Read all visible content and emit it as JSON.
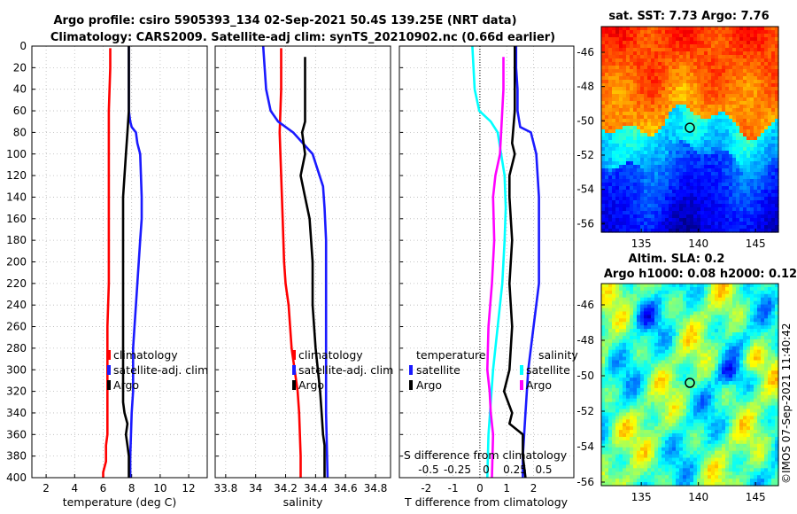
{
  "header": {
    "title_line1": "Argo profile: csiro 5905393_134 02-Sep-2021 50.4S 139.25E (NRT data)",
    "title_line2": "Climatology: CARS2009. Satellite-adj clim: synTS_20210902.nc (0.66d earlier)"
  },
  "colors": {
    "argo": "#000000",
    "climatology": "#ff0000",
    "satellite": "#1a1aff",
    "t_sat": "#00ffff",
    "t_clim": "#ff00ff"
  },
  "chart_data": [
    {
      "type": "line",
      "name": "temperature",
      "xlabel": "temperature (deg C)",
      "xlim": [
        1,
        13.3
      ],
      "ylim": [
        400,
        0
      ],
      "xticks": [
        "2",
        "4",
        "6",
        "8",
        "10",
        "12"
      ],
      "yticks": [
        "0",
        "20",
        "40",
        "60",
        "80",
        "100",
        "120",
        "140",
        "160",
        "180",
        "200",
        "220",
        "240",
        "260",
        "280",
        "300",
        "320",
        "340",
        "360",
        "380",
        "400"
      ],
      "series": [
        {
          "name": "climatology",
          "color_key": "climatology",
          "x": [
            6.5,
            6.5,
            6.4,
            6.4,
            6.4,
            6.4,
            6.4,
            6.4,
            6.3,
            6.3,
            6.3,
            6.3,
            6.3,
            6.3,
            6.2,
            6.2,
            6.2,
            6.1,
            6.0,
            6.0
          ],
          "y": [
            2,
            20,
            60,
            80,
            100,
            140,
            180,
            220,
            260,
            290,
            300,
            320,
            340,
            360,
            370,
            380,
            385,
            390,
            395,
            400
          ]
        },
        {
          "name": "satellite-adj. clim",
          "color_key": "satellite",
          "x": [
            7.8,
            7.8,
            7.8,
            7.9,
            8.0,
            8.3,
            8.4,
            8.6,
            8.7,
            8.7,
            8.6,
            8.5,
            8.4,
            8.3,
            8.2,
            8.1,
            8.1,
            8.1,
            8.0,
            7.9,
            7.9
          ],
          "y": [
            0,
            20,
            60,
            70,
            75,
            80,
            90,
            100,
            140,
            160,
            180,
            200,
            220,
            240,
            260,
            280,
            300,
            320,
            340,
            380,
            400
          ]
        },
        {
          "name": "Argo",
          "color_key": "argo",
          "x": [
            7.8,
            7.8,
            7.7,
            7.6,
            7.5,
            7.4,
            7.4,
            7.4,
            7.4,
            7.4,
            7.4,
            7.5,
            7.7,
            7.6,
            7.7,
            7.8,
            7.8
          ],
          "y": [
            0,
            60,
            80,
            100,
            120,
            140,
            180,
            220,
            260,
            300,
            330,
            340,
            350,
            360,
            370,
            380,
            400
          ]
        }
      ],
      "legend": [
        "climatology",
        "satellite-adj. clim",
        "Argo"
      ]
    },
    {
      "type": "line",
      "name": "salinity",
      "xlabel": "salinity",
      "xlim": [
        33.73,
        34.9
      ],
      "ylim": [
        400,
        0
      ],
      "xticks": [
        "33.8",
        "34",
        "34.2",
        "34.4",
        "34.6",
        "34.8"
      ],
      "series": [
        {
          "name": "climatology",
          "color_key": "climatology",
          "x": [
            34.17,
            34.17,
            34.16,
            34.17,
            34.18,
            34.19,
            34.2,
            34.22,
            34.23,
            34.24,
            34.26,
            34.28,
            34.29,
            34.3,
            34.3
          ],
          "y": [
            2,
            40,
            80,
            120,
            160,
            200,
            220,
            240,
            260,
            280,
            300,
            320,
            340,
            380,
            400
          ]
        },
        {
          "name": "satellite-adj. clim",
          "color_key": "satellite",
          "x": [
            34.05,
            34.07,
            34.1,
            34.15,
            34.25,
            34.38,
            34.45,
            34.46,
            34.47,
            34.47,
            34.47,
            34.48
          ],
          "y": [
            0,
            40,
            60,
            70,
            80,
            100,
            130,
            150,
            180,
            260,
            340,
            400
          ]
        },
        {
          "name": "Argo",
          "color_key": "argo",
          "x": [
            34.33,
            34.33,
            34.33,
            34.31,
            34.32,
            34.33,
            34.3,
            34.33,
            34.36,
            34.38,
            34.38,
            34.4,
            34.43,
            34.44,
            34.45,
            34.46,
            34.46,
            34.46
          ],
          "y": [
            10,
            40,
            70,
            80,
            90,
            100,
            120,
            140,
            160,
            200,
            240,
            280,
            320,
            340,
            360,
            370,
            380,
            400
          ]
        }
      ],
      "legend": [
        "climatology",
        "satellite-adj. clim",
        "Argo"
      ]
    },
    {
      "type": "line",
      "name": "difference",
      "xlabel": "T difference from climatology",
      "xlabel2": "S difference from climatology",
      "xlim": [
        -3,
        3.5
      ],
      "ylim": [
        400,
        0
      ],
      "xticks": [
        "-2",
        "-1",
        "0",
        "1",
        "2"
      ],
      "xticks2": [
        "-0.5",
        "-0.25",
        "0",
        "0.25",
        "0.5"
      ],
      "series": [
        {
          "name": "T satellite",
          "color_key": "satellite",
          "x": [
            1.35,
            1.35,
            1.4,
            1.4,
            1.5,
            1.9,
            2.1,
            2.2,
            2.2,
            2.2,
            2.0,
            1.8,
            1.7,
            1.6,
            1.6
          ],
          "y": [
            0,
            20,
            40,
            60,
            75,
            80,
            100,
            140,
            160,
            220,
            260,
            300,
            340,
            380,
            400
          ]
        },
        {
          "name": "T Argo",
          "color_key": "argo",
          "x": [
            1.3,
            1.3,
            1.2,
            1.3,
            1.1,
            1.1,
            1.2,
            1.1,
            1.2,
            1.1,
            0.9,
            1.2,
            1.1,
            1.6,
            1.6,
            1.7
          ],
          "y": [
            0,
            60,
            90,
            100,
            120,
            140,
            180,
            220,
            260,
            300,
            320,
            340,
            350,
            360,
            380,
            400
          ]
        },
        {
          "name": "S satellite",
          "color_key": "t_sat",
          "x": [
            -0.12,
            -0.1,
            -0.06,
            0.04,
            0.1,
            0.13,
            0.16,
            0.17,
            0.16,
            0.14,
            0.1,
            0.06,
            0.04,
            0.02,
            0.01
          ],
          "y": [
            0,
            40,
            60,
            70,
            80,
            100,
            120,
            150,
            180,
            220,
            260,
            300,
            330,
            360,
            400
          ]
        },
        {
          "name": "S climatology",
          "color_key": "t_clim",
          "x": [
            0.15,
            0.15,
            0.14,
            0.13,
            0.12,
            0.08,
            0.06,
            0.07,
            0.05,
            0.02,
            0.01,
            0.03,
            0.04,
            0.06,
            0.05
          ],
          "y": [
            10,
            40,
            60,
            80,
            100,
            120,
            140,
            180,
            220,
            260,
            300,
            320,
            340,
            360,
            400
          ]
        }
      ],
      "legend_left_title": "temperature",
      "legend_right_title": "salinity",
      "legend_left": [
        "satellite",
        "Argo"
      ],
      "legend_right": [
        "satellite",
        "Argo"
      ]
    },
    {
      "type": "heatmap",
      "name": "sst_map",
      "title": "sat. SST: 7.73 Argo: 7.76",
      "xlim": [
        131.5,
        147
      ],
      "ylim": [
        -56.5,
        -44.5
      ],
      "xticks": [
        "135",
        "140",
        "145"
      ],
      "yticks": [
        "-46",
        "-48",
        "-50",
        "-52",
        "-54",
        "-56"
      ],
      "marker": {
        "lon": 139.25,
        "lat": -50.4
      }
    },
    {
      "type": "heatmap",
      "name": "sla_map",
      "title_line1": "Altim. SLA: 0.2",
      "title_line2": "Argo h1000: 0.08 h2000: 0.12",
      "xlim": [
        131.5,
        147
      ],
      "ylim": [
        -56.2,
        -44.8
      ],
      "xticks": [
        "135",
        "140",
        "145"
      ],
      "yticks": [
        "-46",
        "-48",
        "-50",
        "-52",
        "-54",
        "-56"
      ],
      "marker": {
        "lon": 139.25,
        "lat": -50.4
      }
    }
  ],
  "footer": {
    "watermark": "©IMOS 07-Sep-2021 11:40:42"
  }
}
